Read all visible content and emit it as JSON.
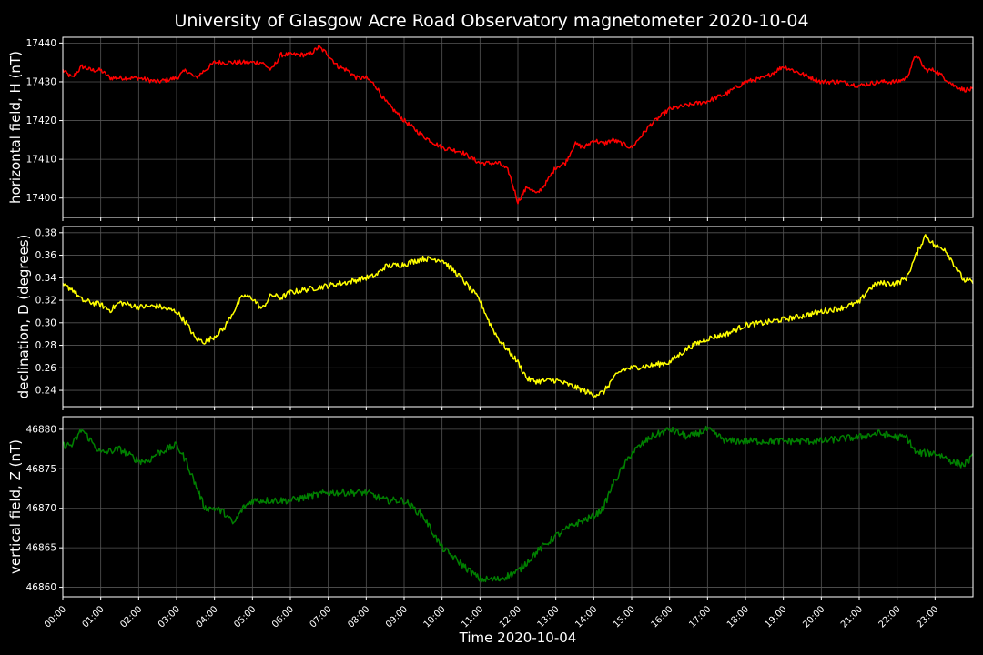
{
  "title": "University of Glasgow Acre Road Observatory magnetometer 2020-10-04",
  "xlabel": "Time 2020-10-04",
  "x_tick_labels": [
    "00:00",
    "01:00",
    "02:00",
    "03:00",
    "04:00",
    "05:00",
    "06:00",
    "07:00",
    "08:00",
    "09:00",
    "10:00",
    "11:00",
    "12:00",
    "13:00",
    "14:00",
    "15:00",
    "16:00",
    "17:00",
    "18:00",
    "19:00",
    "20:00",
    "21:00",
    "22:00",
    "23:00"
  ],
  "chart_data": [
    {
      "type": "line",
      "ylabel": "horizontal field, H (nT)",
      "color": "#ff0000",
      "xlim": [
        0,
        24
      ],
      "ylim": [
        17395,
        17441.5
      ],
      "yticks": [
        17400,
        17410,
        17420,
        17430,
        17440
      ],
      "noise": 0.6,
      "grid": true,
      "x": [
        0,
        0.25,
        0.5,
        0.75,
        1,
        1.25,
        1.5,
        2,
        2.5,
        3,
        3.25,
        3.5,
        4,
        4.5,
        5,
        5.25,
        5.5,
        5.75,
        6,
        6.5,
        6.75,
        7,
        7.25,
        7.5,
        7.75,
        8,
        8.25,
        8.5,
        9,
        9.5,
        10,
        10.5,
        11,
        11.5,
        11.75,
        12,
        12.25,
        12.5,
        12.75,
        13,
        13.25,
        13.5,
        13.75,
        14,
        14.25,
        14.5,
        14.75,
        15,
        15.25,
        15.5,
        16,
        16.5,
        17,
        17.5,
        18,
        18.5,
        19,
        19.5,
        20,
        20.5,
        21,
        21.5,
        22,
        22.25,
        22.5,
        22.75,
        23,
        23.5,
        23.75,
        24
      ],
      "y": [
        17433,
        17431,
        17434,
        17433,
        17433,
        17431,
        17431,
        17431,
        17430,
        17431,
        17433,
        17431,
        17435,
        17435,
        17435,
        17435,
        17433,
        17437,
        17437,
        17437,
        17439,
        17437,
        17434,
        17433,
        17431,
        17431,
        17429,
        17425,
        17420,
        17416,
        17413,
        17412,
        17409,
        17409,
        17407,
        17399,
        17403,
        17401,
        17404,
        17408,
        17409,
        17414,
        17413,
        17415,
        17414,
        17415,
        17414,
        17413,
        17416,
        17419,
        17423,
        17424,
        17425,
        17427,
        17430,
        17431,
        17434,
        17432,
        17430,
        17430,
        17429,
        17430,
        17430,
        17431,
        17437,
        17433,
        17433,
        17429,
        17428,
        17428
      ]
    },
    {
      "type": "line",
      "ylabel": "declination, D (degrees)",
      "color": "#ffff00",
      "xlim": [
        0,
        24
      ],
      "ylim": [
        0.2255,
        0.3855
      ],
      "yticks": [
        0.24,
        0.26,
        0.28,
        0.3,
        0.32,
        0.34,
        0.36,
        0.38
      ],
      "noise": 0.0025,
      "grid": true,
      "x": [
        0,
        0.25,
        0.5,
        1,
        1.25,
        1.5,
        2,
        2.5,
        2.75,
        3,
        3.25,
        3.5,
        3.75,
        4,
        4.25,
        4.5,
        4.75,
        5,
        5.25,
        5.5,
        5.75,
        6,
        6.5,
        7,
        7.5,
        8,
        8.25,
        8.5,
        9,
        9.5,
        10,
        10.5,
        11,
        11.25,
        11.5,
        11.75,
        12,
        12.25,
        12.5,
        13,
        13.5,
        14,
        14.25,
        14.5,
        14.75,
        15,
        15.5,
        16,
        16.5,
        17,
        17.5,
        18,
        18.5,
        19,
        19.5,
        20,
        20.5,
        21,
        21.25,
        21.5,
        22,
        22.25,
        22.5,
        22.75,
        23,
        23.25,
        23.5,
        23.75,
        24
      ],
      "y": [
        0.333,
        0.33,
        0.32,
        0.316,
        0.311,
        0.318,
        0.314,
        0.315,
        0.312,
        0.31,
        0.3,
        0.286,
        0.283,
        0.288,
        0.295,
        0.31,
        0.324,
        0.322,
        0.312,
        0.325,
        0.322,
        0.327,
        0.33,
        0.333,
        0.336,
        0.34,
        0.342,
        0.35,
        0.352,
        0.357,
        0.356,
        0.34,
        0.32,
        0.3,
        0.285,
        0.275,
        0.265,
        0.25,
        0.248,
        0.249,
        0.243,
        0.236,
        0.238,
        0.25,
        0.258,
        0.26,
        0.262,
        0.265,
        0.278,
        0.286,
        0.29,
        0.298,
        0.3,
        0.303,
        0.306,
        0.31,
        0.313,
        0.318,
        0.33,
        0.335,
        0.335,
        0.34,
        0.36,
        0.378,
        0.368,
        0.366,
        0.352,
        0.338,
        0.336
      ]
    },
    {
      "type": "line",
      "ylabel": "vertical field, Z (nT)",
      "color": "#008000",
      "xlim": [
        0,
        24
      ],
      "ylim": [
        46858.8,
        46881.6
      ],
      "yticks": [
        46860,
        46865,
        46870,
        46875,
        46880
      ],
      "noise": 0.45,
      "grid": true,
      "x": [
        0,
        0.25,
        0.5,
        1,
        1.5,
        2,
        2.25,
        2.5,
        3,
        3.25,
        3.5,
        3.75,
        4,
        4.25,
        4.5,
        4.75,
        5,
        5.5,
        6,
        6.5,
        7,
        7.5,
        8,
        8.5,
        9,
        9.5,
        10,
        10.5,
        11,
        11.5,
        12,
        12.5,
        13,
        13.5,
        14,
        14.25,
        14.5,
        14.75,
        15,
        15.25,
        15.5,
        16,
        16.5,
        17,
        17.5,
        18,
        18.5,
        19,
        19.5,
        20,
        20.5,
        21,
        21.5,
        22,
        22.25,
        22.5,
        23,
        23.25,
        23.5,
        23.75,
        24
      ],
      "y": [
        46878,
        46878,
        46880,
        46877,
        46877.5,
        46876,
        46876,
        46877,
        46878,
        46876,
        46873,
        46870,
        46870,
        46869.5,
        46868,
        46870,
        46871,
        46871,
        46871,
        46871.5,
        46872,
        46872,
        46872,
        46871,
        46871,
        46869,
        46865,
        46863,
        46861,
        46861,
        46862,
        46864.5,
        46866.5,
        46868,
        46869,
        46870,
        46873,
        46875,
        46877,
        46878,
        46879,
        46880,
        46879,
        46880,
        46878.5,
        46878.5,
        46878.5,
        46878.5,
        46878.5,
        46878.5,
        46878.8,
        46879,
        46879.5,
        46879,
        46879,
        46877,
        46877,
        46876.5,
        46875.8,
        46875.5,
        46876.5
      ]
    }
  ]
}
